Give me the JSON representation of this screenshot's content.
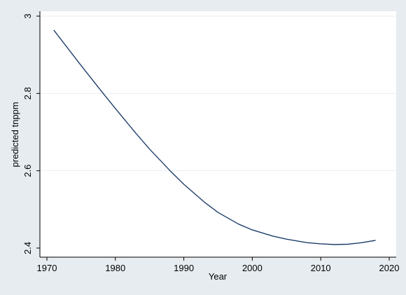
{
  "chart_data": {
    "type": "line",
    "title": "",
    "xlabel": "Year",
    "ylabel": "predicted tnppm",
    "xlim": [
      1970,
      2020
    ],
    "ylim": [
      2.4,
      3.0
    ],
    "x_ticks": [
      1970,
      1980,
      1990,
      2000,
      2010,
      2020
    ],
    "y_ticks": [
      2.4,
      2.6,
      2.8,
      3.0
    ],
    "x_tick_labels": [
      "1970",
      "1980",
      "1990",
      "2000",
      "2010",
      "2020"
    ],
    "y_tick_labels": [
      "2.4",
      "2.6",
      "2.8",
      "3"
    ],
    "grid": "horizontal",
    "legend": "none",
    "series": [
      {
        "color": "#1f3f6b",
        "x": [
          1971,
          1973,
          1975,
          1978,
          1980,
          1983,
          1985,
          1988,
          1990,
          1993,
          1995,
          1998,
          2000,
          2003,
          2005,
          2008,
          2010,
          2012,
          2014,
          2016,
          2018
        ],
        "y": [
          2.964,
          2.918,
          2.872,
          2.805,
          2.761,
          2.697,
          2.656,
          2.6,
          2.565,
          2.519,
          2.492,
          2.462,
          2.447,
          2.431,
          2.423,
          2.414,
          2.411,
          2.409,
          2.41,
          2.414,
          2.42
        ]
      }
    ]
  }
}
